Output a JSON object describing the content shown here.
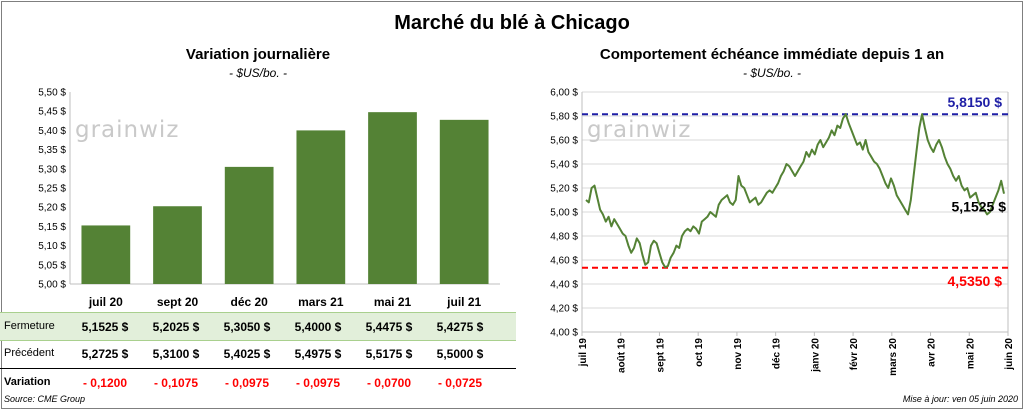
{
  "main_title": "Marché du blé à Chicago",
  "watermark": "grainwiz",
  "source": "Source: CME Group",
  "update": "Mise à jour: ven 05 juin 2020",
  "colors": {
    "bar": "#548235",
    "line": "#548235",
    "high": "#1f1fa6",
    "low": "#ff0000",
    "table_band": "#e2efda"
  },
  "chart_data": [
    {
      "type": "bar",
      "title": "Variation journalière",
      "unit": "- $US/bo. -",
      "categories": [
        "juil 20",
        "sept 20",
        "déc 20",
        "mars 21",
        "mai 21",
        "juil 21"
      ],
      "values": [
        5.1525,
        5.2025,
        5.305,
        5.4,
        5.4475,
        5.4275
      ],
      "ylim": [
        5.0,
        5.5
      ],
      "yticks": [
        "5,00 $",
        "5,05 $",
        "5,10 $",
        "5,15 $",
        "5,20 $",
        "5,25 $",
        "5,30 $",
        "5,35 $",
        "5,40 $",
        "5,45 $",
        "5,50 $"
      ],
      "grid": false,
      "table": {
        "rows": [
          {
            "label": "Fermeture",
            "values": [
              "5,1525 $",
              "5,2025 $",
              "5,3050 $",
              "5,4000 $",
              "5,4475 $",
              "5,4275 $"
            ]
          },
          {
            "label": "Précédent",
            "values": [
              "5,2725 $",
              "5,3100 $",
              "5,4025 $",
              "5,4975 $",
              "5,5175 $",
              "5,5000 $"
            ]
          },
          {
            "label": "Variation",
            "values": [
              "- 0,1200",
              "- 0,1075",
              "- 0,0975",
              "- 0,0975",
              "- 0,0700",
              "- 0,0725"
            ]
          }
        ]
      }
    },
    {
      "type": "line",
      "title": "Comportement échéance immédiate depuis 1 an",
      "unit": "- $US/bo. -",
      "ylim": [
        4.0,
        6.0
      ],
      "yticks": [
        "4,00 $",
        "4,20 $",
        "4,40 $",
        "4,60 $",
        "4,80 $",
        "5,00 $",
        "5,20 $",
        "5,40 $",
        "5,60 $",
        "5,80 $",
        "6,00 $"
      ],
      "xticks": [
        "juil 19",
        "août 19",
        "sept 19",
        "oct 19",
        "nov 19",
        "déc 19",
        "janv 20",
        "févr 20",
        "mars 20",
        "avr 20",
        "mai 20",
        "juin 20"
      ],
      "grid": true,
      "high": {
        "value": 5.815,
        "label": "5,8150 $"
      },
      "low": {
        "value": 4.535,
        "label": "4,5350 $"
      },
      "last": {
        "value": 5.1525,
        "label": "5,1525 $"
      },
      "series": [
        {
          "values": [
            5.1,
            5.08,
            5.2,
            5.22,
            5.12,
            5.02,
            4.98,
            4.92,
            4.96,
            4.88,
            4.94,
            4.9,
            4.86,
            4.82,
            4.8,
            4.72,
            4.66,
            4.7,
            4.78,
            4.74,
            4.64,
            4.56,
            4.58,
            4.72,
            4.76,
            4.74,
            4.66,
            4.58,
            4.54,
            4.55,
            4.62,
            4.66,
            4.72,
            4.7,
            4.8,
            4.84,
            4.86,
            4.84,
            4.88,
            4.86,
            4.82,
            4.92,
            4.94,
            4.96,
            5.0,
            4.98,
            4.96,
            5.06,
            5.1,
            5.12,
            5.14,
            5.08,
            5.06,
            5.1,
            5.3,
            5.22,
            5.2,
            5.14,
            5.08,
            5.1,
            5.12,
            5.06,
            5.08,
            5.12,
            5.16,
            5.18,
            5.16,
            5.2,
            5.24,
            5.3,
            5.34,
            5.4,
            5.38,
            5.34,
            5.3,
            5.34,
            5.38,
            5.42,
            5.5,
            5.46,
            5.52,
            5.48,
            5.56,
            5.6,
            5.54,
            5.58,
            5.62,
            5.68,
            5.64,
            5.72,
            5.7,
            5.78,
            5.815,
            5.74,
            5.68,
            5.62,
            5.56,
            5.58,
            5.52,
            5.6,
            5.5,
            5.46,
            5.42,
            5.4,
            5.36,
            5.3,
            5.24,
            5.2,
            5.28,
            5.22,
            5.14,
            5.1,
            5.06,
            5.02,
            4.98,
            5.1,
            5.3,
            5.5,
            5.7,
            5.815,
            5.7,
            5.6,
            5.54,
            5.5,
            5.56,
            5.6,
            5.54,
            5.46,
            5.4,
            5.36,
            5.3,
            5.26,
            5.3,
            5.22,
            5.18,
            5.2,
            5.12,
            5.14,
            5.16,
            5.08,
            5.04,
            5.02,
            4.98,
            5.0,
            5.06,
            5.12,
            5.18,
            5.26,
            5.1525
          ]
        }
      ]
    }
  ]
}
